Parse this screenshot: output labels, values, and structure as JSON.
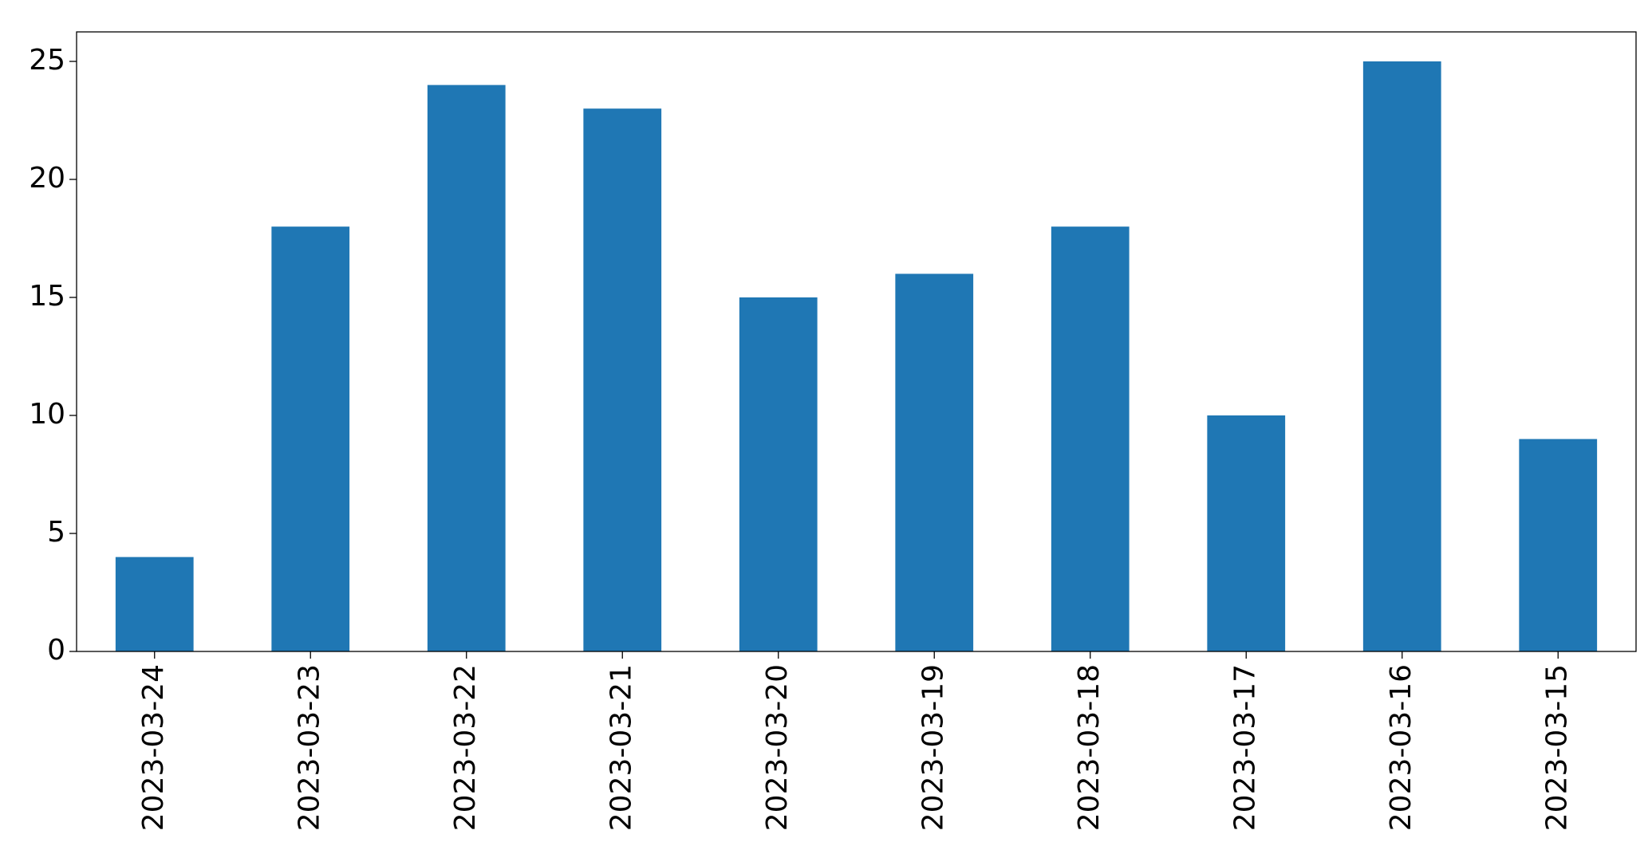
{
  "chart_data": {
    "type": "bar",
    "categories": [
      "2023-03-24",
      "2023-03-23",
      "2023-03-22",
      "2023-03-21",
      "2023-03-20",
      "2023-03-19",
      "2023-03-18",
      "2023-03-17",
      "2023-03-16",
      "2023-03-15"
    ],
    "values": [
      4,
      18,
      24,
      23,
      15,
      16,
      18,
      10,
      25,
      9
    ],
    "color": "#1f77b4",
    "ylim": [
      0,
      26.25
    ],
    "yticks": [
      0,
      5,
      10,
      15,
      20,
      25
    ],
    "grid": false
  }
}
